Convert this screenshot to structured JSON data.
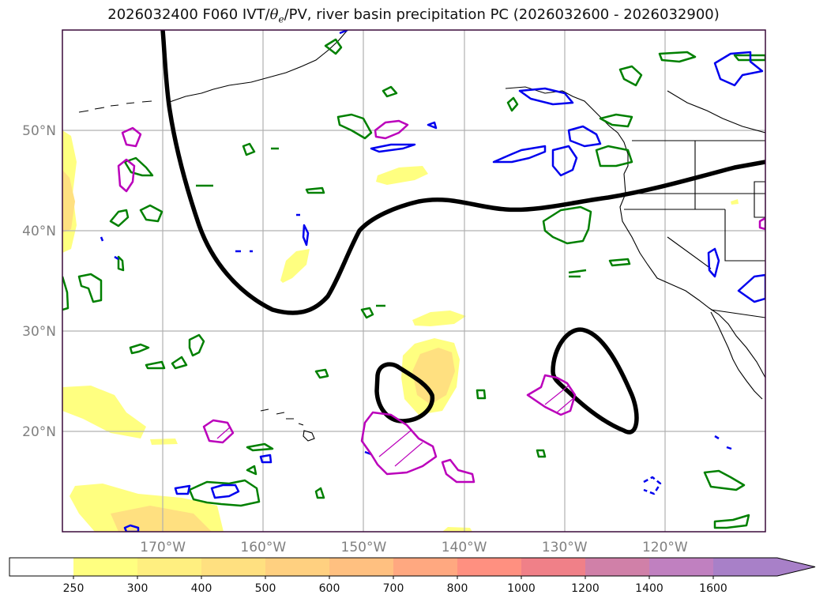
{
  "title": {
    "prefix": "2026032400 F060 IVT/",
    "theta": "θ",
    "sub_e": "e",
    "suffix": "/PV, river basin precipitation PC (2026032600 - 2026032900)"
  },
  "map": {
    "type": "map",
    "projection": "plate-carree",
    "extent": {
      "lon_min": -180,
      "lon_max": -110,
      "lat_min": 10,
      "lat_max": 60
    },
    "gridlines": true,
    "lon_ticks": [
      {
        "lon": -170,
        "label": "170°W"
      },
      {
        "lon": -160,
        "label": "160°W"
      },
      {
        "lon": -150,
        "label": "150°W"
      },
      {
        "lon": -140,
        "label": "140°W"
      },
      {
        "lon": -130,
        "label": "130°W"
      },
      {
        "lon": -120,
        "label": "120°W"
      }
    ],
    "lat_ticks": [
      {
        "lat": 20,
        "label": "20°N"
      },
      {
        "lat": 30,
        "label": "30°N"
      },
      {
        "lat": 40,
        "label": "40°N"
      },
      {
        "lat": 50,
        "label": "50°N"
      }
    ],
    "colors": {
      "pv_contour": "#000000",
      "green_contour": "#008000",
      "blue_contour": "#0000ee",
      "magenta_contour": "#bb00bb",
      "coastline": "#000000",
      "grid": "#b0b0b0"
    }
  },
  "colorbar": {
    "levels": [
      250,
      300,
      400,
      500,
      600,
      700,
      800,
      1000,
      1200,
      1400,
      1600
    ],
    "colors": [
      "#ffff80",
      "#ffef80",
      "#ffe080",
      "#ffd080",
      "#ffc080",
      "#ffa880",
      "#ff9080",
      "#f08088",
      "#d080a8",
      "#c080c0",
      "#a880c8"
    ],
    "under_color": "#ffffff",
    "extend": "max"
  }
}
